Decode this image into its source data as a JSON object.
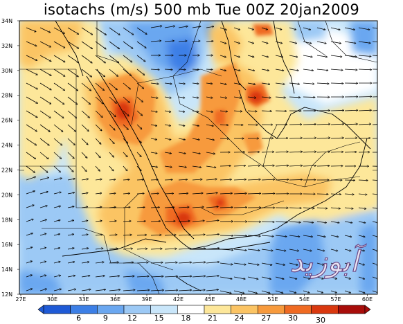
{
  "title": "isotachs (m/s) 500 mb Tue 00Z 20jan2009",
  "lat_labels": [
    "34N",
    "32N",
    "30N",
    "28N",
    "26N",
    "24N",
    "22N",
    "20N",
    "18N",
    "16N",
    "14N",
    "12N"
  ],
  "lon_labels": [
    "27E",
    "30E",
    "33E",
    "36E",
    "39E",
    "42E",
    "45E",
    "48E",
    "51E",
    "54E",
    "57E",
    "60E"
  ],
  "colorbar": {
    "labels": [
      "6",
      "9",
      "12",
      "15",
      "18",
      "21",
      "24",
      "27",
      "30"
    ],
    "extra_label": "30",
    "colors": [
      "#1f5ad6",
      "#3c7fe6",
      "#6aa7f0",
      "#9cc9f5",
      "#c9e6fa",
      "#ffffff",
      "#fde79a",
      "#fbc464",
      "#f79a3c",
      "#ef6a22",
      "#d9380f",
      "#a80d0a"
    ]
  },
  "map_colors": {
    "ocean_base": "#c9e6fa",
    "land_warm": "#fde79a",
    "land_orange": "#fbc464",
    "jet_orange": "#f79a3c",
    "jet_core": "#ef6a22",
    "jet_max": "#d9380f",
    "blue_low": "#6aa7f0",
    "blue_mid": "#3c7fe6",
    "blue_deep": "#1f5ad6"
  },
  "watermark": "آبوزید"
}
